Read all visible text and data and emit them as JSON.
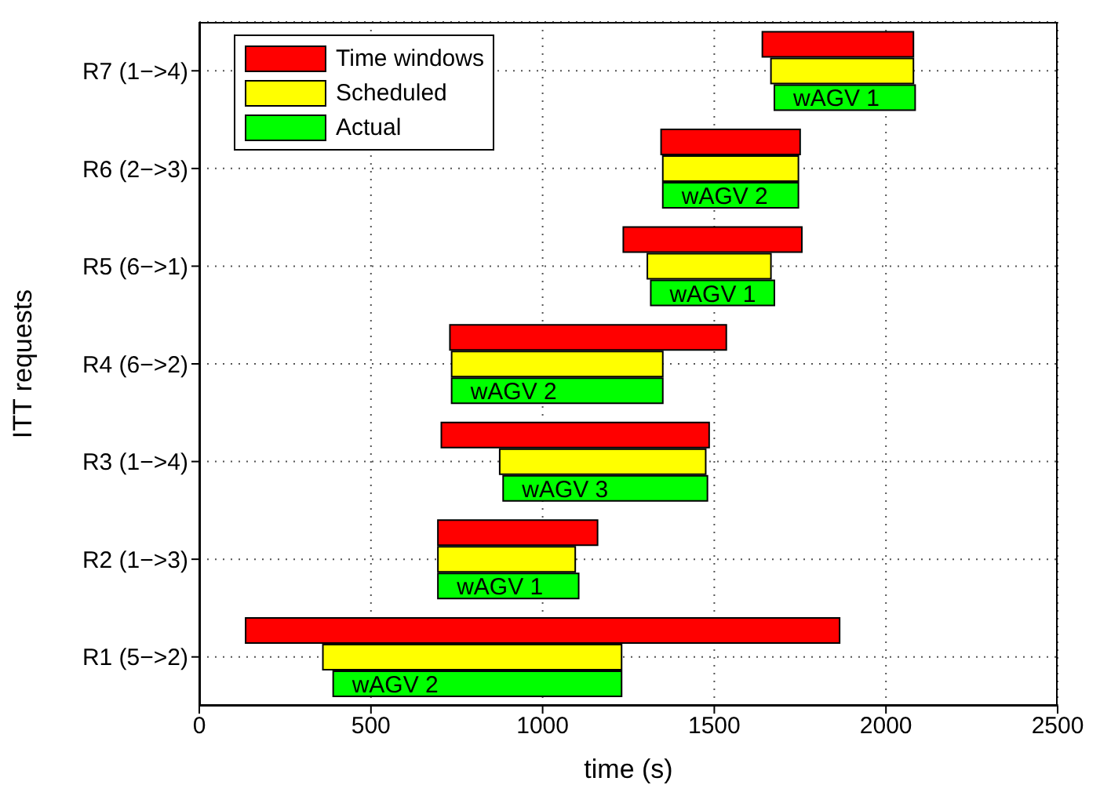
{
  "chart_data": {
    "type": "bar",
    "orientation": "horizontal",
    "xlabel": "time (s)",
    "ylabel": "ITT requests",
    "categories": [
      "R7 (1−>4)",
      "R6 (2−>3)",
      "R5 (6−>1)",
      "R4 (6−>2)",
      "R3 (1−>4)",
      "R2 (1−>3)",
      "R1 (5−>2)"
    ],
    "series": [
      {
        "name": "Time windows",
        "color": "#ff0000",
        "base": [
          1640,
          1345,
          1235,
          730,
          705,
          695,
          135
        ],
        "values": [
          440,
          405,
          520,
          805,
          780,
          465,
          1730
        ]
      },
      {
        "name": "Scheduled",
        "color": "#ffff00",
        "base": [
          1665,
          1350,
          1305,
          735,
          875,
          695,
          360
        ],
        "values": [
          415,
          395,
          360,
          615,
          600,
          400,
          870
        ]
      },
      {
        "name": "Actual",
        "color": "#00ff00",
        "base": [
          1675,
          1350,
          1315,
          735,
          885,
          695,
          390
        ],
        "values": [
          410,
          395,
          360,
          615,
          595,
          410,
          840
        ],
        "value_labels": [
          "wAGV 1",
          "wAGV 2",
          "wAGV 1",
          "wAGV 2",
          "wAGV 3",
          "wAGV 1",
          "wAGV 2"
        ]
      }
    ],
    "xlim": [
      0,
      2500
    ],
    "xticks": [
      0,
      500,
      1000,
      1500,
      2000,
      2500
    ],
    "grid": true,
    "legend": "top left"
  }
}
